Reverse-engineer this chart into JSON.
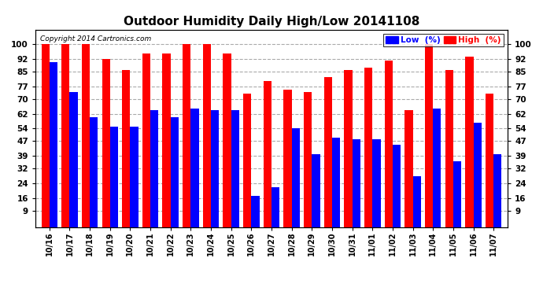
{
  "title": "Outdoor Humidity Daily High/Low 20141108",
  "copyright": "Copyright 2014 Cartronics.com",
  "categories": [
    "10/16",
    "10/17",
    "10/18",
    "10/19",
    "10/20",
    "10/21",
    "10/22",
    "10/23",
    "10/24",
    "10/25",
    "10/26",
    "10/27",
    "10/28",
    "10/29",
    "10/30",
    "10/31",
    "11/01",
    "11/02",
    "11/03",
    "11/04",
    "11/05",
    "11/06",
    "11/07"
  ],
  "high_values": [
    100,
    100,
    100,
    92,
    86,
    95,
    95,
    100,
    100,
    95,
    73,
    80,
    75,
    74,
    82,
    86,
    87,
    91,
    64,
    100,
    86,
    93,
    73
  ],
  "low_values": [
    90,
    74,
    60,
    55,
    55,
    64,
    60,
    65,
    64,
    64,
    17,
    22,
    54,
    40,
    49,
    48,
    48,
    45,
    28,
    65,
    36,
    57,
    40
  ],
  "high_color": "#ff0000",
  "low_color": "#0000ff",
  "bg_color": "#ffffff",
  "ylim": [
    0,
    108
  ],
  "yticks": [
    9,
    16,
    24,
    32,
    39,
    47,
    54,
    62,
    70,
    77,
    85,
    92,
    100
  ],
  "grid_color": "#aaaaaa",
  "bar_width": 0.4,
  "figsize": [
    6.9,
    3.75
  ],
  "dpi": 100
}
